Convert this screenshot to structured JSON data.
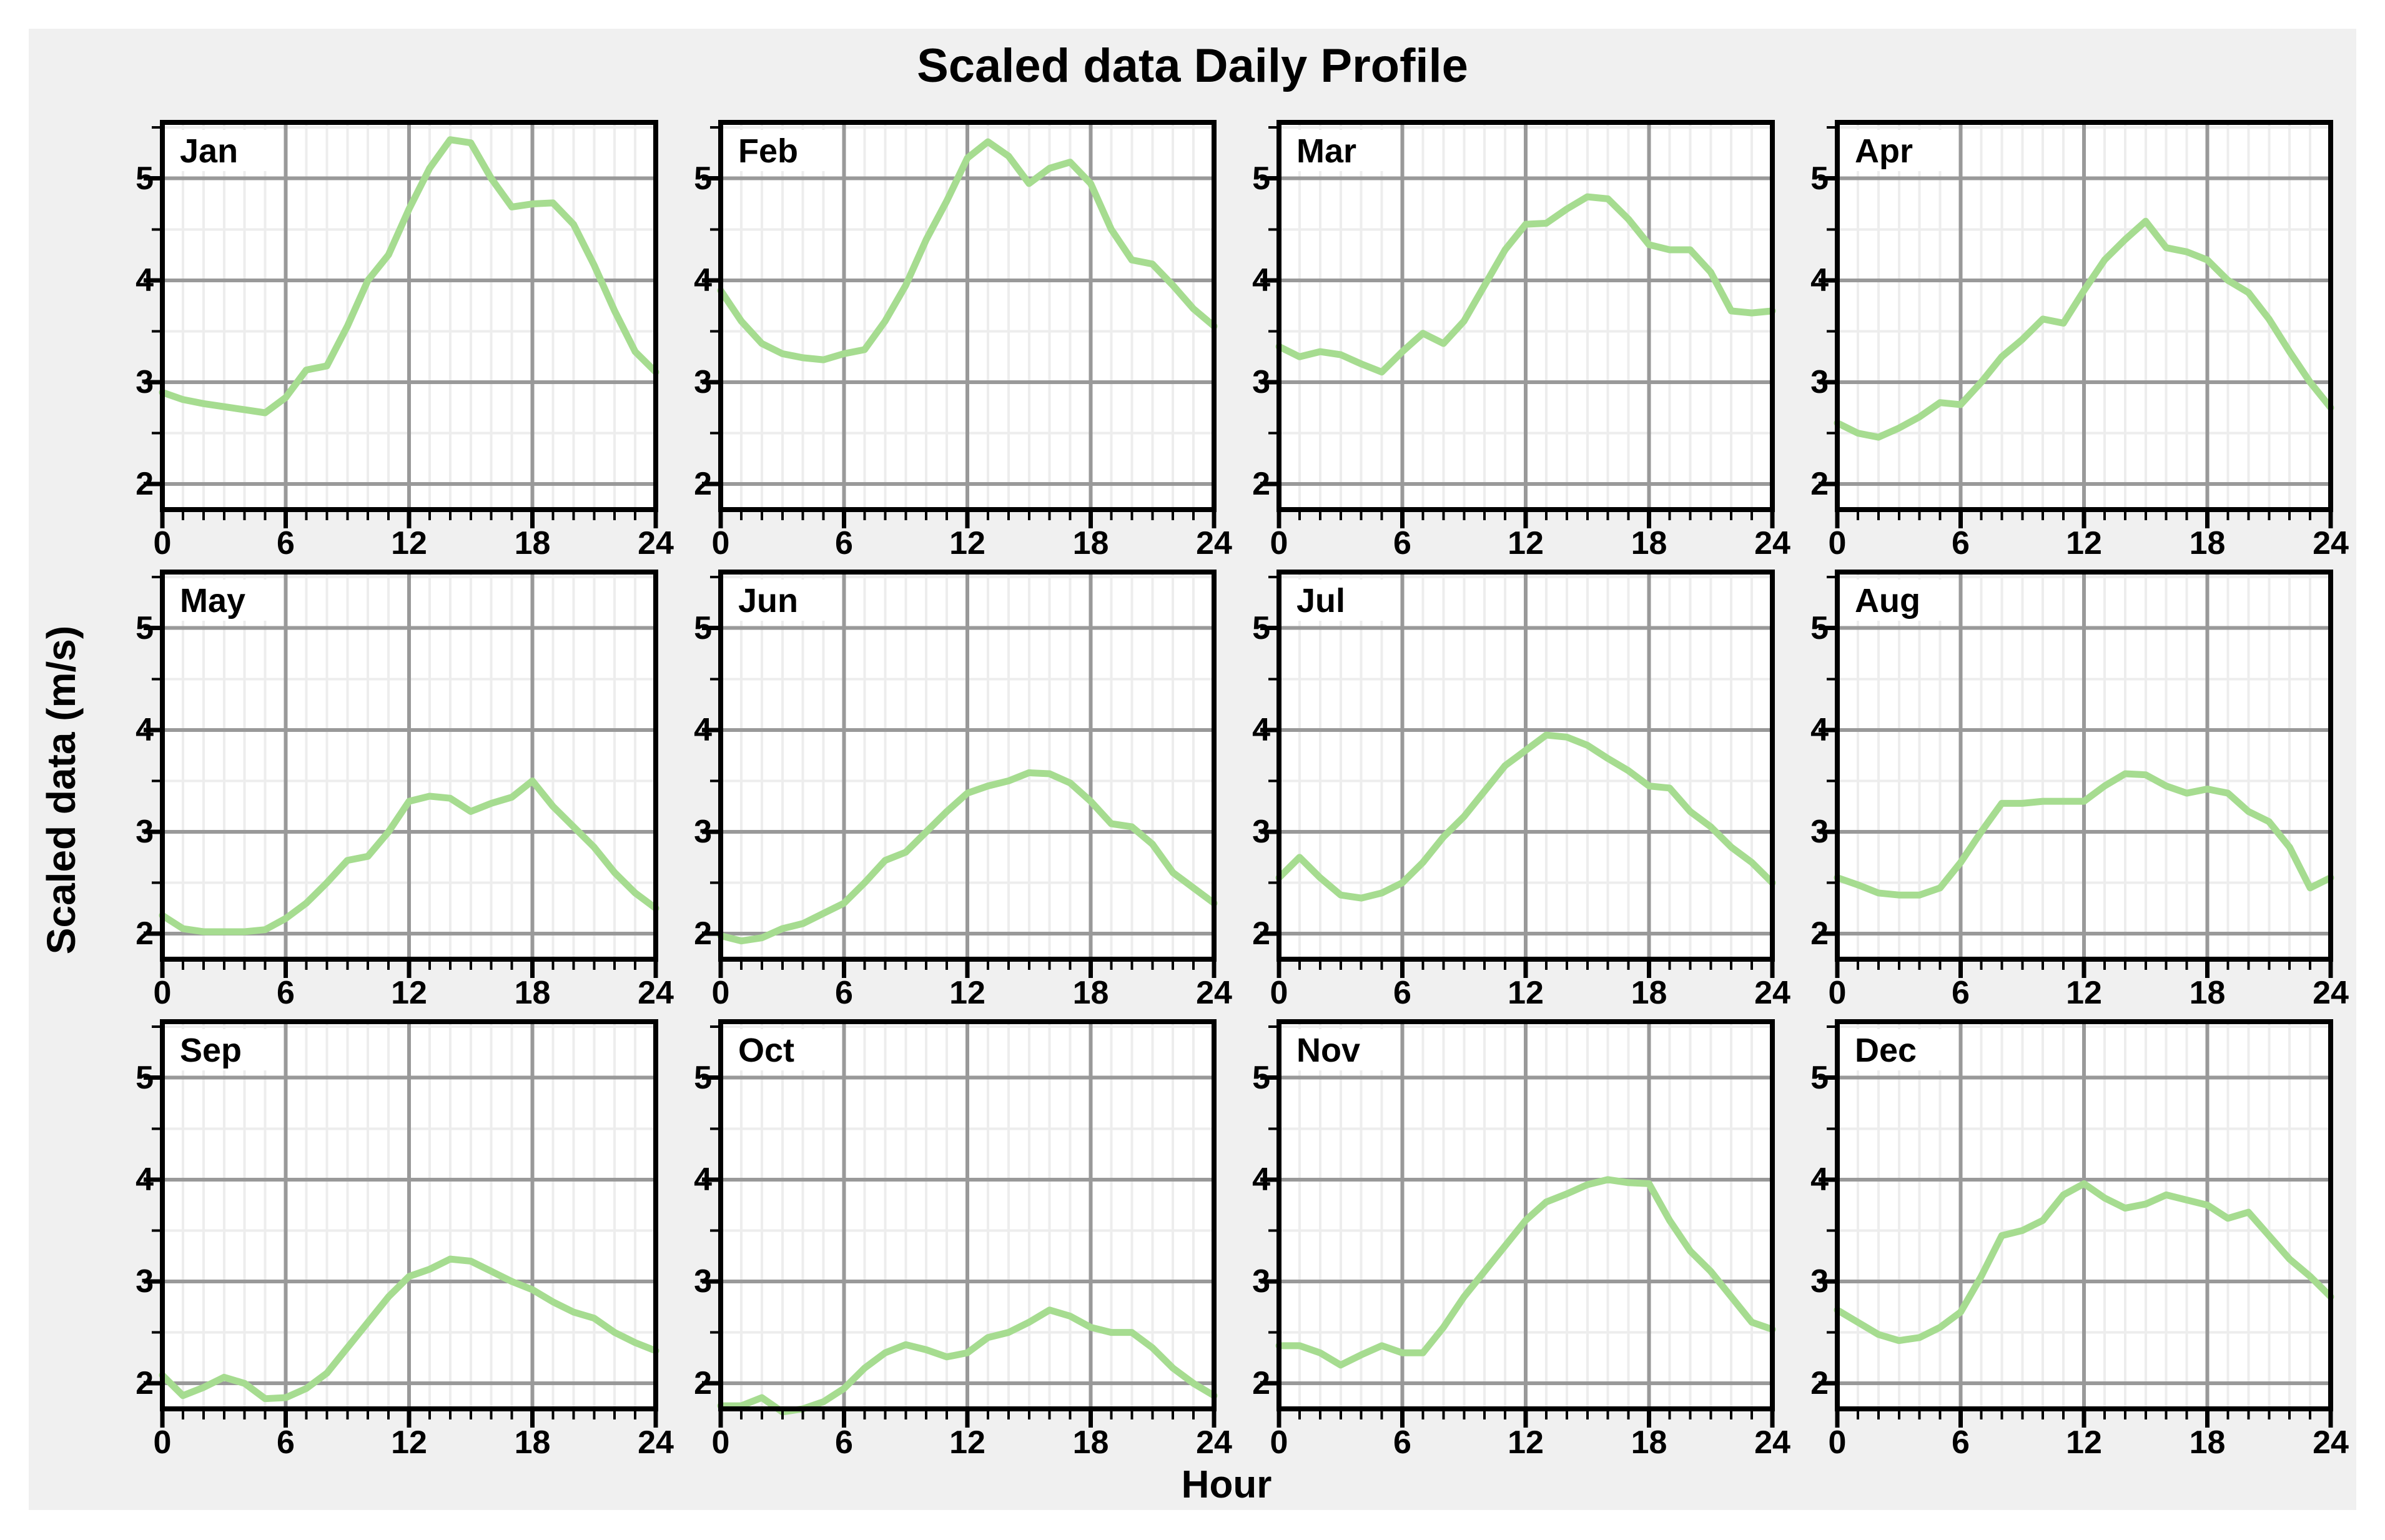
{
  "title": "Scaled data Daily Profile",
  "x_axis_label": "Hour",
  "y_axis_label": "Scaled data (m/s)",
  "colors": {
    "page_background": "#ffffff",
    "figure_background": "#f0f0f0",
    "plot_background": "#ffffff",
    "major_grid": "#999999",
    "minor_grid": "#ededed",
    "frame": "#000000",
    "line": "#a6dc90",
    "text": "#000000"
  },
  "chart_data": {
    "type": "line",
    "layout": "12 small-multiple panels, 3 rows x 4 columns, one per month",
    "title": "Scaled data Daily Profile",
    "xlabel": "Hour",
    "ylabel": "Scaled data (m/s)",
    "x": [
      0,
      1,
      2,
      3,
      4,
      5,
      6,
      7,
      8,
      9,
      10,
      11,
      12,
      13,
      14,
      15,
      16,
      17,
      18,
      19,
      20,
      21,
      22,
      23,
      24
    ],
    "x_ticks": [
      0,
      6,
      12,
      18,
      24
    ],
    "y_ticks": [
      5,
      4,
      3,
      2
    ],
    "y_minor_ticks": [
      5.5,
      4.5,
      3.5,
      2.5
    ],
    "x_range": [
      0,
      24
    ],
    "y_range": [
      1.75,
      5.55
    ],
    "grid": "major gray lines at x=6,12,18 and y=2,3,4,5; faint minor lines every 1 hour and every 0.5 units",
    "legend_position": "none (panel label top-left inside each plot)",
    "series": [
      {
        "name": "Jan",
        "values": [
          2.9,
          2.83,
          2.79,
          2.76,
          2.73,
          2.7,
          2.85,
          3.12,
          3.16,
          3.55,
          4.0,
          4.25,
          4.7,
          5.1,
          5.38,
          5.35,
          5.0,
          4.72,
          4.75,
          4.76,
          4.55,
          4.15,
          3.7,
          3.3,
          3.1
        ]
      },
      {
        "name": "Feb",
        "values": [
          3.9,
          3.6,
          3.38,
          3.28,
          3.24,
          3.22,
          3.28,
          3.32,
          3.6,
          3.95,
          4.4,
          4.78,
          5.2,
          5.36,
          5.22,
          4.95,
          5.1,
          5.16,
          4.95,
          4.5,
          4.2,
          4.16,
          3.95,
          3.72,
          3.55
        ]
      },
      {
        "name": "Mar",
        "values": [
          3.35,
          3.25,
          3.3,
          3.27,
          3.18,
          3.1,
          3.3,
          3.48,
          3.38,
          3.6,
          3.95,
          4.3,
          4.55,
          4.56,
          4.7,
          4.82,
          4.8,
          4.6,
          4.35,
          4.3,
          4.3,
          4.08,
          3.7,
          3.68,
          3.7
        ]
      },
      {
        "name": "Apr",
        "values": [
          2.6,
          2.5,
          2.46,
          2.55,
          2.66,
          2.8,
          2.78,
          3.0,
          3.25,
          3.42,
          3.62,
          3.58,
          3.9,
          4.2,
          4.4,
          4.58,
          4.32,
          4.28,
          4.2,
          4.0,
          3.88,
          3.62,
          3.3,
          3.0,
          2.75
        ]
      },
      {
        "name": "May",
        "values": [
          2.18,
          2.05,
          2.02,
          2.02,
          2.02,
          2.04,
          2.15,
          2.3,
          2.5,
          2.72,
          2.76,
          3.0,
          3.3,
          3.35,
          3.33,
          3.2,
          3.28,
          3.34,
          3.5,
          3.25,
          3.05,
          2.85,
          2.6,
          2.4,
          2.25
        ]
      },
      {
        "name": "Jun",
        "values": [
          1.98,
          1.93,
          1.96,
          2.05,
          2.1,
          2.2,
          2.3,
          2.5,
          2.72,
          2.8,
          3.0,
          3.2,
          3.38,
          3.45,
          3.5,
          3.58,
          3.57,
          3.48,
          3.3,
          3.08,
          3.05,
          2.88,
          2.6,
          2.45,
          2.3
        ]
      },
      {
        "name": "Jul",
        "values": [
          2.55,
          2.75,
          2.55,
          2.38,
          2.35,
          2.4,
          2.5,
          2.7,
          2.95,
          3.15,
          3.4,
          3.65,
          3.8,
          3.95,
          3.93,
          3.85,
          3.72,
          3.6,
          3.45,
          3.43,
          3.2,
          3.05,
          2.85,
          2.7,
          2.5
        ]
      },
      {
        "name": "Aug",
        "values": [
          2.55,
          2.48,
          2.4,
          2.38,
          2.38,
          2.45,
          2.7,
          3.0,
          3.28,
          3.28,
          3.3,
          3.3,
          3.3,
          3.45,
          3.57,
          3.56,
          3.45,
          3.38,
          3.42,
          3.38,
          3.2,
          3.1,
          2.85,
          2.45,
          2.55
        ]
      },
      {
        "name": "Sep",
        "values": [
          2.08,
          1.88,
          1.96,
          2.06,
          2.0,
          1.85,
          1.86,
          1.95,
          2.1,
          2.35,
          2.6,
          2.85,
          3.05,
          3.12,
          3.22,
          3.2,
          3.1,
          3.0,
          2.92,
          2.8,
          2.7,
          2.64,
          2.5,
          2.4,
          2.32
        ]
      },
      {
        "name": "Oct",
        "values": [
          1.78,
          1.78,
          1.86,
          1.72,
          1.75,
          1.82,
          1.95,
          2.15,
          2.3,
          2.38,
          2.33,
          2.26,
          2.3,
          2.45,
          2.5,
          2.6,
          2.72,
          2.66,
          2.55,
          2.5,
          2.5,
          2.35,
          2.15,
          2.0,
          1.88
        ]
      },
      {
        "name": "Nov",
        "values": [
          2.37,
          2.37,
          2.3,
          2.18,
          2.28,
          2.37,
          2.3,
          2.3,
          2.55,
          2.85,
          3.1,
          3.35,
          3.6,
          3.78,
          3.86,
          3.95,
          4.0,
          3.97,
          3.96,
          3.6,
          3.3,
          3.1,
          2.85,
          2.6,
          2.53
        ]
      },
      {
        "name": "Dec",
        "values": [
          2.72,
          2.6,
          2.48,
          2.42,
          2.45,
          2.55,
          2.7,
          3.05,
          3.45,
          3.5,
          3.6,
          3.85,
          3.96,
          3.82,
          3.72,
          3.76,
          3.85,
          3.8,
          3.75,
          3.62,
          3.68,
          3.45,
          3.22,
          3.05,
          2.85
        ]
      }
    ]
  }
}
